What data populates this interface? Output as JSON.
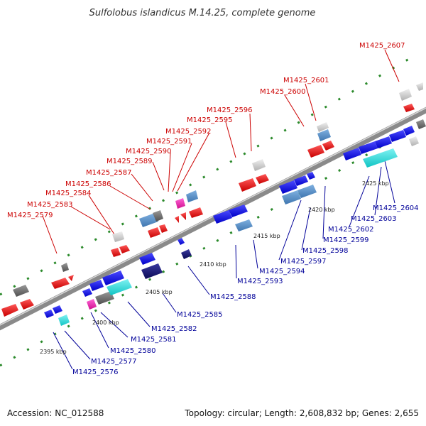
{
  "title": "Sulfolobus islandicus M.14.25, complete genome",
  "footer": {
    "accession": "Accession: NC_012588",
    "summary": "Topology: circular; Length: 2,608,832 bp; Genes: 2,655"
  },
  "colors": {
    "forward": "#cc0000",
    "reverse": "#000099",
    "backbone": "#999999"
  },
  "ticks": [
    "2395 kbp",
    "2400 kbp",
    "2405 kbp",
    "2410 kbp",
    "2415 kbp",
    "2420 kbp",
    "2425 kbp"
  ],
  "top_labels": [
    "M1425_2579",
    "M1425_2583",
    "M1425_2584",
    "M1425_2586",
    "M1425_2587",
    "M1425_2589",
    "M1425_2590",
    "M1425_2591",
    "M1425_2592",
    "M1425_2595",
    "M1425_2596",
    "M1425_2600",
    "M1425_2601",
    "M1425_2607"
  ],
  "bottom_labels": [
    "M1425_2576",
    "M1425_2577",
    "M1425_2580",
    "M1425_2581",
    "M1425_2582",
    "M1425_2585",
    "M1425_2588",
    "M1425_2593",
    "M1425_2594",
    "M1425_2597",
    "M1425_2598",
    "M1425_2599",
    "M1425_2602",
    "M1425_2603",
    "M1425_2604"
  ]
}
